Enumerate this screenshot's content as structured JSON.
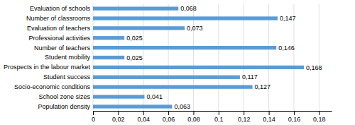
{
  "chart_data": {
    "type": "bar",
    "orientation": "horizontal",
    "categories": [
      "Population density",
      "School zone sizes",
      "Socio-economic conditions",
      "Student success",
      "Prospects in the labour market",
      "Student mobility",
      "Number of teachers",
      "Professional activities",
      "Evaluation of teachers",
      "Number of classrooms",
      "Evaluation of schools"
    ],
    "values": [
      0.063,
      0.041,
      0.127,
      0.117,
      0.168,
      0.025,
      0.146,
      0.025,
      0.073,
      0.147,
      0.068
    ],
    "value_labels": [
      "0,063",
      "0,041",
      "0,127",
      "0,117",
      "0,168",
      "0,025",
      "0,146",
      "0,025",
      "0,073",
      "0,147",
      "0,068"
    ],
    "data_labels": true,
    "color": "#5B9BD5",
    "xlim": [
      0,
      0.19
    ],
    "xticks": [
      0,
      {
        "value": 0.02,
        "label": "0,02"
      },
      {
        "value": 0.04,
        "label": "0,04"
      },
      {
        "value": 0.06,
        "label": "0,06"
      },
      {
        "value": 0.08,
        "label": "0,08"
      },
      {
        "value": 0.1,
        "label": "0,1"
      },
      {
        "value": 0.12,
        "label": "0,12"
      },
      {
        "value": 0.14,
        "label": "0,14"
      },
      {
        "value": 0.16,
        "label": "0,16"
      },
      {
        "value": 0.18,
        "label": "0,18"
      }
    ],
    "grid": true
  }
}
